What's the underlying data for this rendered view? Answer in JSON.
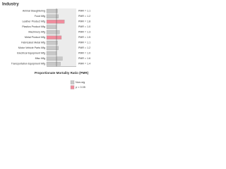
{
  "chart_data": {
    "type": "bar",
    "orientation": "horizontal",
    "title": "Industry",
    "x_label": "Proportionate Mortality Ratio (PMR)",
    "categories": [
      "Animal Slaughtering",
      "Food Mfg",
      "Leather Product Mfg",
      "Plastics Product Mfg",
      "Machinery Mfg",
      "Metal Product Mfg",
      "Fabricated Metal Mfg",
      "Motor Vehicle Parts Mfg",
      "Electrical Equipment Mfg",
      "Misc Mfg",
      "Transportation Equipment Mfg"
    ],
    "series": [
      {
        "name": "Non-sig",
        "color": "#c8c8c8",
        "values": [
          1.1,
          1.2,
          null,
          1.0,
          1.3,
          null,
          1.1,
          1.2,
          1.0,
          1.6,
          1.4
        ],
        "value_labels": [
          "PMR = 1.1",
          "PMR = 1.2",
          null,
          "PMR = 1.0",
          "PMR = 1.3",
          null,
          "PMR = 1.1",
          "PMR = 1.2",
          "PMR = 1.0",
          "PMR = 1.6",
          "PMR = 1.4"
        ]
      },
      {
        "name": "p < 0.05",
        "color": "#f08c9c",
        "values": [
          null,
          null,
          1.8,
          null,
          null,
          1.5,
          null,
          null,
          null,
          null,
          null
        ],
        "value_labels": [
          null,
          null,
          "PMR = 1.8",
          null,
          null,
          "PMR = 1.5",
          null,
          null,
          null,
          null,
          null
        ]
      }
    ],
    "xlim": [
      0,
      3
    ],
    "reference": 1
  }
}
